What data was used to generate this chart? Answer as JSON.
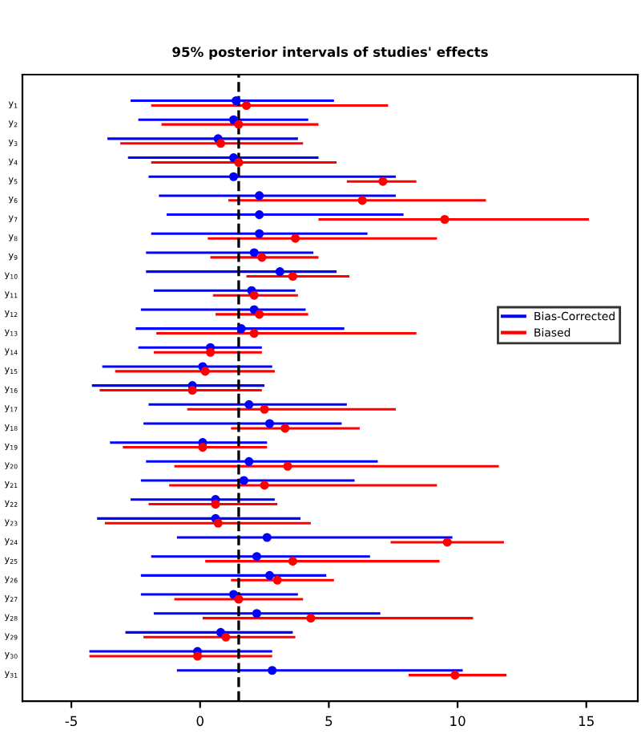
{
  "chart_data": {
    "type": "scatter",
    "orientation": "horizontal",
    "title": "95% posterior intervals of studies' effects",
    "categories": [
      "y$_{1}$",
      "y$_{2}$",
      "y$_{3}$",
      "y$_{4}$",
      "y$_{5}$",
      "y$_{6}$",
      "y$_{7}$",
      "y$_{8}$",
      "y$_{9}$",
      "y$_{10}$",
      "y$_{11}$",
      "y$_{12}$",
      "y$_{13}$",
      "y$_{14}$",
      "y$_{15}$",
      "y$_{16}$",
      "y$_{17}$",
      "y$_{18}$",
      "y$_{19}$",
      "y$_{20}$",
      "y$_{21}$",
      "y$_{22}$",
      "y$_{23}$",
      "y$_{24}$",
      "y$_{25}$",
      "y$_{26}$",
      "y$_{27}$",
      "y$_{28}$",
      "y$_{29}$",
      "y$_{30}$",
      "y$_{31}$"
    ],
    "series": [
      {
        "name": "Bias-Corrected",
        "color": "#0000ff",
        "values": [
          1.4,
          1.3,
          0.7,
          1.3,
          1.3,
          2.3,
          2.3,
          2.3,
          2.1,
          3.1,
          2.0,
          2.1,
          1.6,
          0.4,
          0.1,
          -0.3,
          1.9,
          2.7,
          0.1,
          1.9,
          1.7,
          0.6,
          0.6,
          2.6,
          2.2,
          2.7,
          1.3,
          2.2,
          0.8,
          -0.1,
          2.8
        ],
        "errors": [
          [
            -2.7,
            5.2
          ],
          [
            -2.4,
            4.2
          ],
          [
            -3.6,
            3.8
          ],
          [
            -2.8,
            4.6
          ],
          [
            -2.0,
            7.6
          ],
          [
            -1.6,
            7.6
          ],
          [
            -1.3,
            7.9
          ],
          [
            -1.9,
            6.5
          ],
          [
            -2.1,
            4.4
          ],
          [
            -2.1,
            5.3
          ],
          [
            -1.8,
            3.7
          ],
          [
            -2.3,
            4.1
          ],
          [
            -2.5,
            5.6
          ],
          [
            -2.4,
            2.4
          ],
          [
            -3.8,
            2.8
          ],
          [
            -4.2,
            2.5
          ],
          [
            -2.0,
            5.7
          ],
          [
            -2.2,
            5.5
          ],
          [
            -3.5,
            2.6
          ],
          [
            -2.1,
            6.9
          ],
          [
            -2.3,
            6.0
          ],
          [
            -2.7,
            2.9
          ],
          [
            -4.0,
            3.9
          ],
          [
            -0.9,
            9.8
          ],
          [
            -1.9,
            6.6
          ],
          [
            -2.3,
            4.9
          ],
          [
            -2.3,
            3.8
          ],
          [
            -1.8,
            7.0
          ],
          [
            -2.9,
            3.6
          ],
          [
            -4.3,
            2.8
          ],
          [
            -0.9,
            10.2
          ]
        ]
      },
      {
        "name": "Biased",
        "color": "#ff0000",
        "values": [
          1.8,
          1.5,
          0.8,
          1.5,
          7.1,
          6.3,
          9.5,
          3.7,
          2.4,
          3.6,
          2.1,
          2.3,
          2.1,
          0.4,
          0.2,
          -0.3,
          2.5,
          3.3,
          0.1,
          3.4,
          2.5,
          0.6,
          0.7,
          9.6,
          3.6,
          3.0,
          1.5,
          4.3,
          1.0,
          -0.1,
          9.9
        ],
        "errors": [
          [
            -1.9,
            7.3
          ],
          [
            -1.5,
            4.6
          ],
          [
            -3.1,
            4.0
          ],
          [
            -1.9,
            5.3
          ],
          [
            5.7,
            8.4
          ],
          [
            1.1,
            11.1
          ],
          [
            4.6,
            15.1
          ],
          [
            0.3,
            9.2
          ],
          [
            0.4,
            4.6
          ],
          [
            1.8,
            5.8
          ],
          [
            0.5,
            3.8
          ],
          [
            0.6,
            4.2
          ],
          [
            -1.7,
            8.4
          ],
          [
            -1.8,
            2.4
          ],
          [
            -3.3,
            2.9
          ],
          [
            -3.9,
            2.4
          ],
          [
            -0.5,
            7.6
          ],
          [
            1.2,
            6.2
          ],
          [
            -3.0,
            2.6
          ],
          [
            -1.0,
            11.6
          ],
          [
            -1.2,
            9.2
          ],
          [
            -2.0,
            3.0
          ],
          [
            -3.7,
            4.3
          ],
          [
            7.4,
            11.8
          ],
          [
            0.2,
            9.3
          ],
          [
            1.2,
            5.2
          ],
          [
            -1.0,
            4.0
          ],
          [
            0.1,
            10.6
          ],
          [
            -2.2,
            3.7
          ],
          [
            -4.3,
            2.8
          ],
          [
            8.1,
            11.9
          ]
        ]
      }
    ],
    "xlim": [
      -6.9,
      17
    ],
    "xticks": [
      -5,
      0,
      5,
      10,
      15
    ],
    "ref_lines": [
      {
        "axis": "x",
        "value": 1.5,
        "color": "#000000",
        "line_style": "dashed"
      }
    ],
    "marker": "circle",
    "legend": "right",
    "grid": false
  }
}
